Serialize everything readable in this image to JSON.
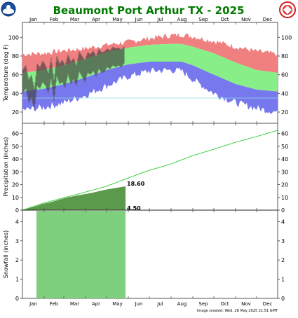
{
  "title": "Beaumont Port Arthur TX - 2025",
  "footer": "Image created: Wed, 28 May 2025 21:51 GMT",
  "logos": {
    "left": "NOAA",
    "right": "NATIONAL WEATHER SERVICE"
  },
  "colors": {
    "title": "#007a00",
    "record_high": "#f08080",
    "normal": "#88ee88",
    "record_low": "#7777ee",
    "observed": "#444444",
    "precip_normal": "#2ecc2e",
    "precip_observed_fill": "#a09070",
    "precip_observed_normal_fill": "#5b9a4a",
    "snow_normal": "#7ecf7e"
  },
  "months": [
    "Jan",
    "Feb",
    "Mar",
    "Apr",
    "May",
    "Jun",
    "Jul",
    "Aug",
    "Sep",
    "Oct",
    "Nov",
    "Dec"
  ],
  "chart_data": [
    {
      "type": "area",
      "name": "temperature",
      "ylabel": "Temperature (deg F)",
      "ylim": [
        8,
        116
      ],
      "yticks": [
        20,
        40,
        60,
        80,
        100
      ],
      "x_unit": "day of year",
      "record_high": {
        "x": [
          1,
          32,
          60,
          91,
          121,
          152,
          182,
          213,
          228,
          244,
          274,
          305,
          335,
          365
        ],
        "y": [
          82,
          83,
          86,
          88,
          92,
          95,
          99,
          102,
          103,
          101,
          96,
          90,
          85,
          82
        ]
      },
      "normal_high": {
        "x": [
          1,
          32,
          60,
          91,
          121,
          152,
          182,
          213,
          228,
          244,
          274,
          305,
          335,
          365
        ],
        "y": [
          62,
          65,
          70,
          77,
          84,
          89,
          92,
          93,
          93,
          90,
          83,
          73,
          65,
          62
        ]
      },
      "normal_low": {
        "x": [
          1,
          32,
          60,
          91,
          121,
          152,
          182,
          213,
          228,
          244,
          274,
          305,
          335,
          365
        ],
        "y": [
          42,
          45,
          50,
          57,
          65,
          71,
          74,
          74,
          74,
          70,
          60,
          50,
          44,
          42
        ]
      },
      "record_low": {
        "x": [
          1,
          32,
          60,
          91,
          121,
          152,
          182,
          213,
          228,
          244,
          274,
          305,
          335,
          365
        ],
        "y": [
          22,
          25,
          30,
          38,
          48,
          58,
          64,
          65,
          64,
          55,
          40,
          30,
          24,
          20
        ]
      },
      "observed_high": {
        "x": [
          1,
          6,
          10,
          14,
          18,
          22,
          26,
          30,
          34,
          38,
          42,
          46,
          50,
          54,
          58,
          62,
          66,
          70,
          74,
          78,
          82,
          86,
          90,
          94,
          98,
          102,
          106,
          110,
          114,
          118,
          122,
          126,
          130,
          134,
          138,
          142,
          146
        ],
        "y": [
          65,
          70,
          55,
          60,
          45,
          72,
          68,
          75,
          70,
          62,
          78,
          55,
          80,
          72,
          76,
          70,
          82,
          74,
          78,
          70,
          85,
          80,
          76,
          84,
          82,
          86,
          80,
          88,
          84,
          85,
          88,
          86,
          90,
          88,
          89,
          87,
          90
        ]
      },
      "observed_low": {
        "x": [
          1,
          6,
          10,
          14,
          18,
          22,
          26,
          30,
          34,
          38,
          42,
          46,
          50,
          54,
          58,
          62,
          66,
          70,
          74,
          78,
          82,
          86,
          90,
          94,
          98,
          102,
          106,
          110,
          114,
          118,
          122,
          126,
          130,
          134,
          138,
          142,
          146
        ],
        "y": [
          40,
          45,
          30,
          35,
          22,
          48,
          45,
          52,
          48,
          40,
          55,
          32,
          58,
          50,
          52,
          46,
          60,
          50,
          55,
          48,
          63,
          58,
          52,
          62,
          60,
          64,
          58,
          66,
          62,
          63,
          68,
          66,
          70,
          68,
          70,
          68,
          72
        ]
      },
      "extra_line": {
        "y": 35,
        "color": "#8fe0e0"
      }
    },
    {
      "type": "line",
      "name": "precipitation",
      "ylabel": "Precipitation (inches)",
      "ylim": [
        0,
        68
      ],
      "yticks": [
        0,
        10,
        20,
        30,
        40,
        50,
        60
      ],
      "normal_cumulative": {
        "x": [
          1,
          31,
          59,
          90,
          120,
          151,
          181,
          212,
          243,
          273,
          304,
          334,
          365
        ],
        "y": [
          0,
          5.5,
          9.5,
          14,
          18.5,
          25,
          31,
          36,
          42.5,
          47.5,
          53,
          57.5,
          62.5
        ]
      },
      "observed_cumulative": {
        "x": [
          1,
          10,
          20,
          31,
          40,
          59,
          70,
          90,
          100,
          120,
          148
        ],
        "y": [
          0,
          1.5,
          3,
          5,
          6,
          9,
          10.5,
          12.5,
          13.5,
          16,
          18.6
        ]
      },
      "labels": [
        {
          "text": "18.60",
          "x": 148,
          "y": 18.6
        },
        {
          "text": "4.50",
          "x": 148,
          "y": 0
        }
      ]
    },
    {
      "type": "area",
      "name": "snowfall",
      "ylabel": "Snowfall (inches)",
      "ylim": [
        0,
        4.6
      ],
      "yticks": [
        0,
        1,
        2,
        3,
        4
      ],
      "observed_snow_band": {
        "x_start": 21,
        "x_end": 148
      }
    }
  ]
}
